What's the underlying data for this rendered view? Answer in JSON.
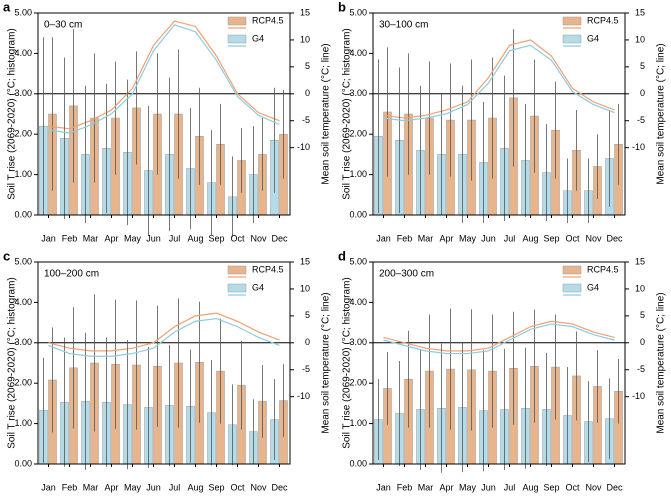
{
  "chart_data": [
    {
      "type": "bar",
      "panel": "a",
      "title": "0–30 cm",
      "ylabel": "Soil T rise (2069-2020) (°C; histogram)",
      "y2label": "Mean soil temperature (°C; line)",
      "categories": [
        "Jan",
        "Feb",
        "Mar",
        "Apr",
        "May",
        "Jun",
        "Jul",
        "Aug",
        "Sep",
        "Oct",
        "Nov",
        "Dec"
      ],
      "ylim": [
        0,
        5
      ],
      "yticks": [
        {
          "value": 0,
          "label": "0.00"
        },
        {
          "value": 1,
          "label": "1.00"
        },
        {
          "value": 2,
          "label": "2.00"
        },
        {
          "value": 3,
          "label": "3.00"
        },
        {
          "value": 4,
          "label": "4.00"
        },
        {
          "value": 5,
          "label": "5.00"
        }
      ],
      "y2lim": [
        -22.5,
        15
      ],
      "y2ticks": [
        -10,
        -5,
        0,
        5,
        10,
        15
      ],
      "y2_refline": 0,
      "legend": "upper right",
      "series": [
        {
          "name": "RCP4.5",
          "color": "#e8b48c",
          "line_color": "#f0a070",
          "values": [
            2.5,
            2.7,
            2.4,
            2.4,
            2.65,
            2.5,
            2.5,
            1.95,
            1.75,
            1.35,
            1.5,
            2.0
          ],
          "errors": [
            1.9,
            1.9,
            1.6,
            1.4,
            1.4,
            1.5,
            1.6,
            1.2,
            1.0,
            0.8,
            0.9,
            1.1
          ],
          "line_values": [
            -6,
            -6.5,
            -5,
            -3,
            1,
            9,
            13.5,
            12.5,
            7,
            0,
            -3.5,
            -5
          ]
        },
        {
          "name": "G4",
          "color": "#b4dce8",
          "line_color": "#8ccbe0",
          "values": [
            2.2,
            1.9,
            1.5,
            1.65,
            1.55,
            1.1,
            1.5,
            1.15,
            0.8,
            0.45,
            1.0,
            1.85
          ],
          "errors": [
            2.2,
            2.0,
            1.7,
            1.6,
            1.8,
            1.6,
            1.9,
            1.5,
            1.3,
            1.0,
            1.2,
            1.3
          ],
          "line_values": [
            -6.7,
            -7.3,
            -5.8,
            -3.7,
            0,
            8,
            12.8,
            11.5,
            6.2,
            -0.5,
            -4,
            -5.7
          ]
        }
      ]
    },
    {
      "type": "bar",
      "panel": "b",
      "title": "30–100 cm",
      "ylabel": "Soil T rise (2069-2020) (°C; histogram)",
      "y2label": "Mean soil temperature (°C; line)",
      "categories": [
        "Jan",
        "Feb",
        "Mar",
        "Apr",
        "May",
        "Jun",
        "Jul",
        "Aug",
        "Sep",
        "Oct",
        "Nov",
        "Dec"
      ],
      "ylim": [
        0,
        5
      ],
      "yticks": [
        {
          "value": 0,
          "label": "0.00"
        },
        {
          "value": 1,
          "label": "1.00"
        },
        {
          "value": 2,
          "label": "2.00"
        },
        {
          "value": 3,
          "label": "3.00"
        },
        {
          "value": 4,
          "label": "4.00"
        },
        {
          "value": 5,
          "label": "5.00"
        }
      ],
      "y2lim": [
        -22.5,
        15
      ],
      "y2ticks": [
        -10,
        -5,
        0,
        5,
        10,
        15
      ],
      "y2_refline": 0,
      "legend": "upper right",
      "series": [
        {
          "name": "RCP4.5",
          "color": "#e8b48c",
          "line_color": "#f0a070",
          "values": [
            2.55,
            2.5,
            2.4,
            2.35,
            2.35,
            2.4,
            2.9,
            2.45,
            2.1,
            1.6,
            1.2,
            1.75
          ],
          "errors": [
            1.6,
            1.5,
            1.4,
            1.4,
            1.5,
            1.5,
            1.7,
            1.4,
            1.2,
            1.0,
            0.8,
            1.0
          ],
          "line_values": [
            -4,
            -4.5,
            -4,
            -3,
            -1.5,
            3,
            9,
            10,
            7,
            1,
            -1.5,
            -3
          ]
        },
        {
          "name": "G4",
          "color": "#b4dce8",
          "line_color": "#8ccbe0",
          "values": [
            1.95,
            1.85,
            1.6,
            1.5,
            1.5,
            1.3,
            1.65,
            1.35,
            1.05,
            0.6,
            0.6,
            1.4
          ],
          "errors": [
            1.9,
            1.8,
            1.6,
            1.5,
            1.7,
            1.5,
            1.8,
            1.4,
            1.2,
            0.8,
            0.8,
            1.2
          ],
          "line_values": [
            -4.5,
            -5,
            -4.5,
            -3.7,
            -2,
            2,
            8,
            9,
            6.2,
            0.4,
            -2,
            -3.5
          ]
        }
      ]
    },
    {
      "type": "bar",
      "panel": "c",
      "title": "100–200 cm",
      "ylabel": "Soil T rise (2069-2020) (°C; histogram)",
      "y2label": "Mean soil temperature (°C; line)",
      "categories": [
        "Jan",
        "Feb",
        "Mar",
        "Apr",
        "May",
        "Jun",
        "Jul",
        "Aug",
        "Sep",
        "Oct",
        "Nov",
        "Dec"
      ],
      "ylim": [
        0,
        5
      ],
      "yticks": [
        {
          "value": 0,
          "label": "0.00"
        },
        {
          "value": 1,
          "label": "1.00"
        },
        {
          "value": 2,
          "label": "2.00"
        },
        {
          "value": 3,
          "label": "3.00"
        },
        {
          "value": 4,
          "label": "4.00"
        },
        {
          "value": 5,
          "label": "5.00"
        }
      ],
      "y2lim": [
        -22.5,
        15
      ],
      "y2ticks": [
        -10,
        -5,
        0,
        5,
        10,
        15
      ],
      "y2_refline": 0,
      "legend": "upper right",
      "series": [
        {
          "name": "RCP4.5",
          "color": "#e8b48c",
          "line_color": "#f0a070",
          "values": [
            2.08,
            2.38,
            2.5,
            2.47,
            2.45,
            2.42,
            2.5,
            2.52,
            2.3,
            1.95,
            1.55,
            1.57
          ],
          "errors": [
            1.3,
            1.5,
            1.7,
            1.6,
            1.6,
            1.5,
            1.6,
            1.5,
            1.3,
            1.1,
            0.9,
            0.9
          ],
          "line_values": [
            0,
            -1,
            -1.5,
            -1.5,
            -1,
            0,
            3,
            5,
            5.5,
            4,
            2,
            0.5
          ]
        },
        {
          "name": "G4",
          "color": "#b4dce8",
          "line_color": "#8ccbe0",
          "values": [
            1.33,
            1.53,
            1.55,
            1.53,
            1.47,
            1.4,
            1.45,
            1.43,
            1.27,
            0.97,
            0.8,
            1.1
          ],
          "errors": [
            1.3,
            1.6,
            1.7,
            1.6,
            1.6,
            1.5,
            1.5,
            1.4,
            1.3,
            1.0,
            0.8,
            1.0
          ],
          "line_values": [
            -0.5,
            -2,
            -2.5,
            -2.5,
            -2,
            -1,
            2,
            4,
            4.5,
            3,
            1,
            -0.5
          ]
        }
      ]
    },
    {
      "type": "bar",
      "panel": "d",
      "title": "200–300 cm",
      "ylabel": "Soil T rise (2069-2020) (°C; histogram)",
      "y2label": "Mean soil temperature (°C; line)",
      "categories": [
        "Jan",
        "Feb",
        "Mar",
        "Apr",
        "May",
        "Jun",
        "Jul",
        "Aug",
        "Sep",
        "Oct",
        "Nov",
        "Dec"
      ],
      "ylim": [
        0,
        5
      ],
      "yticks": [
        {
          "value": 0,
          "label": "0.00"
        },
        {
          "value": 1,
          "label": "1.00"
        },
        {
          "value": 2,
          "label": "2.00"
        },
        {
          "value": 3,
          "label": "3.00"
        },
        {
          "value": 4,
          "label": "4.00"
        },
        {
          "value": 5,
          "label": "5.00"
        }
      ],
      "y2lim": [
        -22.5,
        15
      ],
      "y2ticks": [
        -10,
        -5,
        0,
        5,
        10,
        15
      ],
      "y2_refline": 0,
      "legend": "upper right",
      "series": [
        {
          "name": "RCP4.5",
          "color": "#e8b48c",
          "line_color": "#f0a070",
          "values": [
            1.87,
            2.1,
            2.3,
            2.35,
            2.33,
            2.3,
            2.37,
            2.42,
            2.4,
            2.18,
            1.92,
            1.8
          ],
          "errors": [
            0.9,
            1.2,
            1.4,
            1.5,
            1.5,
            1.4,
            1.4,
            1.4,
            1.3,
            1.1,
            0.9,
            0.8
          ],
          "line_values": [
            1,
            0,
            -1,
            -1.5,
            -1.5,
            -1,
            1,
            3,
            4,
            3.5,
            2,
            1
          ]
        },
        {
          "name": "G4",
          "color": "#b4dce8",
          "line_color": "#8ccbe0",
          "values": [
            1.1,
            1.25,
            1.35,
            1.38,
            1.4,
            1.32,
            1.35,
            1.38,
            1.35,
            1.2,
            1.05,
            1.12
          ],
          "errors": [
            1.0,
            1.3,
            1.5,
            1.6,
            1.6,
            1.5,
            1.5,
            1.5,
            1.4,
            1.2,
            1.0,
            1.0
          ],
          "line_values": [
            0.5,
            -0.5,
            -1.5,
            -2,
            -2,
            -1.5,
            0.5,
            2.5,
            3.5,
            3,
            1.5,
            0.5
          ]
        }
      ]
    }
  ]
}
